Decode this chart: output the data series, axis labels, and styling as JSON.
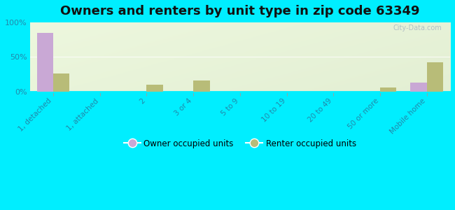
{
  "title": "Owners and renters by unit type in zip code 63349",
  "categories": [
    "1, detached",
    "1, attached",
    "2",
    "3 or 4",
    "5 to 9",
    "10 to 19",
    "20 to 49",
    "50 or more",
    "Mobile home"
  ],
  "owner_values": [
    85,
    0,
    0,
    0,
    0,
    0,
    0,
    0,
    13
  ],
  "renter_values": [
    26,
    0,
    10,
    16,
    0,
    0,
    0,
    6,
    42
  ],
  "owner_color": "#c9a8d5",
  "renter_color": "#b8bc78",
  "background_color": "#00eeff",
  "ylabel_ticks": [
    "0%",
    "50%",
    "100%"
  ],
  "ytick_vals": [
    0,
    50,
    100
  ],
  "ylim": [
    0,
    100
  ],
  "bar_width": 0.35,
  "legend_owner": "Owner occupied units",
  "legend_renter": "Renter occupied units",
  "title_fontsize": 13,
  "tick_fontsize": 7.5,
  "watermark": "City-Data.com"
}
